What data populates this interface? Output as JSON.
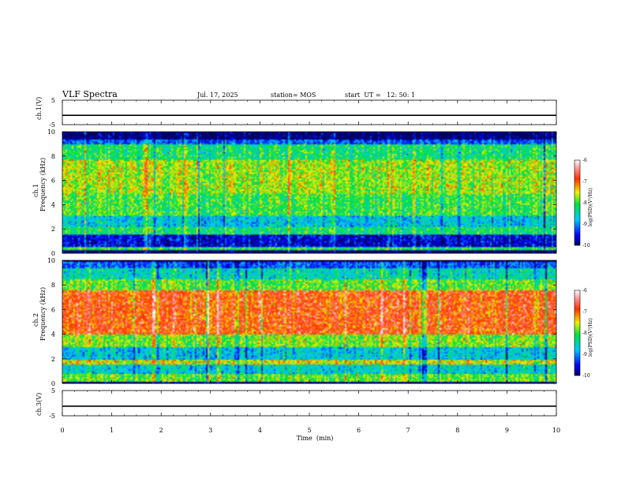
{
  "chart_data": {
    "type": "heatmap",
    "title": "VLF Spectra",
    "date": "Jul. 17, 2025",
    "station": "station= MOS",
    "start": "start  UT =   12: 50: 1",
    "xlabel": "Time  (min)",
    "x_ticks": [
      "0",
      "1",
      "2",
      "3",
      "4",
      "5",
      "6",
      "7",
      "8",
      "9",
      "10"
    ],
    "xlim": [
      0,
      10
    ],
    "panels": [
      {
        "name": "ch1-waveform",
        "type": "line",
        "ylabel": "ch.1(V)",
        "ylim": [
          -5,
          5
        ],
        "y_ticks": [
          "5",
          "-5"
        ],
        "baseline": -1.2
      },
      {
        "name": "ch1-spectrogram",
        "type": "heatmap",
        "ylabel_top": "ch.1",
        "ylabel": "Frequency  (kHz)",
        "ylim": [
          0,
          10
        ],
        "y_ticks": [
          "0",
          "2",
          "4",
          "6",
          "8",
          "10"
        ],
        "colorbar": {
          "label": "log(PSD)(V²/Hz)",
          "ticks": [
            "-6",
            "-7",
            "-8",
            "-9",
            "-10"
          ],
          "range": [
            -10,
            -6
          ]
        },
        "bands": [
          {
            "from": 0.0,
            "to": 0.3,
            "level": -10.0
          },
          {
            "from": 0.3,
            "to": 0.6,
            "level": -8.1
          },
          {
            "from": 0.6,
            "to": 1.6,
            "level": -9.6
          },
          {
            "from": 1.6,
            "to": 2.2,
            "level": -8.2
          },
          {
            "from": 2.2,
            "to": 3.2,
            "level": -8.7
          },
          {
            "from": 3.2,
            "to": 5.0,
            "level": -8.0
          },
          {
            "from": 5.0,
            "to": 7.8,
            "level": -7.7
          },
          {
            "from": 7.8,
            "to": 9.0,
            "level": -8.2
          },
          {
            "from": 9.0,
            "to": 9.4,
            "level": -9.2
          },
          {
            "from": 9.4,
            "to": 10.0,
            "level": -10.0
          }
        ]
      },
      {
        "name": "ch2-spectrogram",
        "type": "heatmap",
        "ylabel_top": "ch.2",
        "ylabel": "Frequency  (kHz)",
        "ylim": [
          0,
          10
        ],
        "y_ticks": [
          "0",
          "2",
          "4",
          "6",
          "8",
          "10"
        ],
        "colorbar": {
          "label": "log(PSD)(V²/Hz)",
          "ticks": [
            "-6",
            "-7",
            "-8",
            "-9",
            "-10"
          ],
          "range": [
            -10,
            -6
          ]
        },
        "bands": [
          {
            "from": 0.0,
            "to": 0.2,
            "level": -10.0
          },
          {
            "from": 0.2,
            "to": 0.8,
            "level": -7.9
          },
          {
            "from": 0.8,
            "to": 1.6,
            "level": -8.6
          },
          {
            "from": 1.6,
            "to": 2.0,
            "level": -7.5
          },
          {
            "from": 2.0,
            "to": 3.0,
            "level": -8.7
          },
          {
            "from": 3.0,
            "to": 4.0,
            "level": -7.8
          },
          {
            "from": 4.0,
            "to": 7.6,
            "level": -6.9
          },
          {
            "from": 7.6,
            "to": 8.5,
            "level": -7.9
          },
          {
            "from": 8.5,
            "to": 9.4,
            "level": -8.5
          },
          {
            "from": 9.4,
            "to": 10.0,
            "level": -9.2
          }
        ]
      },
      {
        "name": "ch3-waveform",
        "type": "line",
        "ylabel": "ch.3(V)",
        "ylim": [
          -5,
          5
        ],
        "y_ticks": [
          "5",
          "-5"
        ],
        "baseline": -1.2
      }
    ]
  }
}
